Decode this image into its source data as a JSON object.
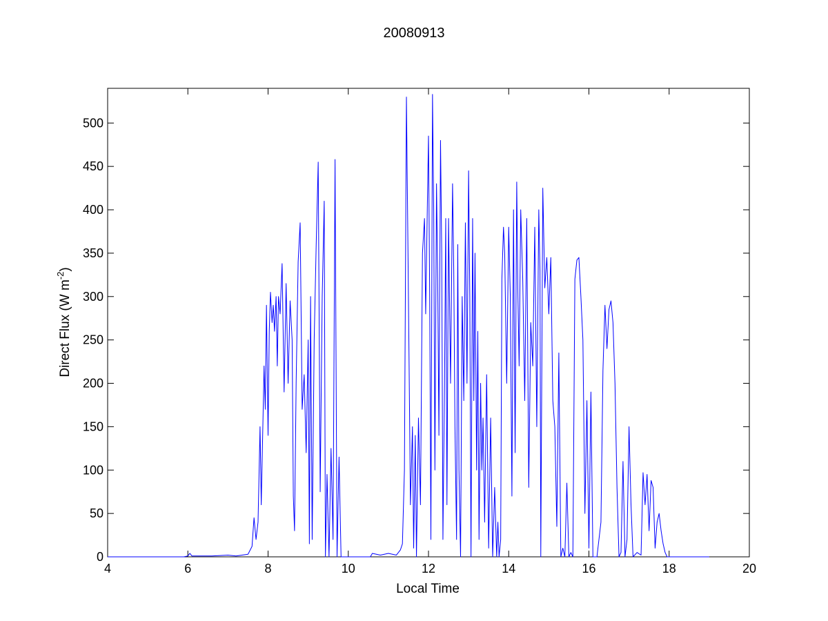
{
  "chart_data": {
    "type": "line",
    "title": "20080913",
    "xlabel": "Local Time",
    "ylabel": "Direct Flux (W m",
    "ylabel_sup": "-2",
    "ylabel_end": ")",
    "xlim": [
      4,
      20
    ],
    "ylim": [
      0,
      540
    ],
    "x_ticks": [
      4,
      6,
      8,
      10,
      12,
      14,
      16,
      18,
      20
    ],
    "y_ticks": [
      0,
      50,
      100,
      150,
      200,
      250,
      300,
      350,
      400,
      450,
      500
    ],
    "grid": false,
    "legend": "none",
    "series_color": "#0000ff",
    "series": [
      {
        "points": [
          [
            4.0,
            0
          ],
          [
            5.9,
            0
          ],
          [
            6.0,
            1
          ],
          [
            6.05,
            4
          ],
          [
            6.1,
            1
          ],
          [
            6.3,
            1
          ],
          [
            6.6,
            1
          ],
          [
            7.0,
            2
          ],
          [
            7.2,
            1
          ],
          [
            7.5,
            3
          ],
          [
            7.6,
            12
          ],
          [
            7.65,
            45
          ],
          [
            7.7,
            20
          ],
          [
            7.75,
            40
          ],
          [
            7.8,
            150
          ],
          [
            7.83,
            60
          ],
          [
            7.87,
            150
          ],
          [
            7.9,
            220
          ],
          [
            7.93,
            170
          ],
          [
            7.96,
            290
          ],
          [
            8.0,
            140
          ],
          [
            8.03,
            260
          ],
          [
            8.06,
            305
          ],
          [
            8.1,
            270
          ],
          [
            8.13,
            290
          ],
          [
            8.16,
            260
          ],
          [
            8.2,
            300
          ],
          [
            8.23,
            220
          ],
          [
            8.26,
            300
          ],
          [
            8.3,
            280
          ],
          [
            8.35,
            338
          ],
          [
            8.4,
            190
          ],
          [
            8.45,
            315
          ],
          [
            8.5,
            200
          ],
          [
            8.55,
            295
          ],
          [
            8.6,
            250
          ],
          [
            8.63,
            70
          ],
          [
            8.66,
            30
          ],
          [
            8.7,
            200
          ],
          [
            8.75,
            340
          ],
          [
            8.8,
            385
          ],
          [
            8.85,
            170
          ],
          [
            8.9,
            210
          ],
          [
            8.95,
            120
          ],
          [
            9.0,
            250
          ],
          [
            9.03,
            15
          ],
          [
            9.06,
            300
          ],
          [
            9.1,
            20
          ],
          [
            9.15,
            250
          ],
          [
            9.2,
            360
          ],
          [
            9.25,
            455
          ],
          [
            9.3,
            75
          ],
          [
            9.35,
            300
          ],
          [
            9.4,
            410
          ],
          [
            9.43,
            0
          ],
          [
            9.47,
            95
          ],
          [
            9.52,
            0
          ],
          [
            9.57,
            125
          ],
          [
            9.62,
            20
          ],
          [
            9.67,
            458
          ],
          [
            9.72,
            0
          ],
          [
            9.77,
            115
          ],
          [
            9.82,
            0
          ],
          [
            9.9,
            0
          ],
          [
            10.3,
            0
          ],
          [
            10.55,
            0
          ],
          [
            10.6,
            4
          ],
          [
            10.8,
            2
          ],
          [
            11.0,
            4
          ],
          [
            11.2,
            2
          ],
          [
            11.3,
            8
          ],
          [
            11.35,
            15
          ],
          [
            11.4,
            100
          ],
          [
            11.45,
            530
          ],
          [
            11.5,
            300
          ],
          [
            11.55,
            60
          ],
          [
            11.6,
            150
          ],
          [
            11.63,
            10
          ],
          [
            11.67,
            140
          ],
          [
            11.7,
            0
          ],
          [
            11.75,
            160
          ],
          [
            11.8,
            60
          ],
          [
            11.85,
            350
          ],
          [
            11.9,
            390
          ],
          [
            11.93,
            280
          ],
          [
            11.97,
            400
          ],
          [
            12.0,
            485
          ],
          [
            12.03,
            300
          ],
          [
            12.06,
            20
          ],
          [
            12.1,
            533
          ],
          [
            12.13,
            400
          ],
          [
            12.16,
            100
          ],
          [
            12.2,
            430
          ],
          [
            12.23,
            320
          ],
          [
            12.26,
            140
          ],
          [
            12.3,
            480
          ],
          [
            12.33,
            350
          ],
          [
            12.36,
            20
          ],
          [
            12.4,
            200
          ],
          [
            12.43,
            390
          ],
          [
            12.46,
            60
          ],
          [
            12.5,
            390
          ],
          [
            12.55,
            200
          ],
          [
            12.6,
            430
          ],
          [
            12.63,
            330
          ],
          [
            12.66,
            150
          ],
          [
            12.7,
            20
          ],
          [
            12.73,
            360
          ],
          [
            12.76,
            100
          ],
          [
            12.8,
            0
          ],
          [
            12.84,
            300
          ],
          [
            12.88,
            180
          ],
          [
            12.92,
            385
          ],
          [
            12.96,
            200
          ],
          [
            13.0,
            445
          ],
          [
            13.03,
            300
          ],
          [
            13.06,
            0
          ],
          [
            13.1,
            390
          ],
          [
            13.13,
            180
          ],
          [
            13.16,
            350
          ],
          [
            13.2,
            100
          ],
          [
            13.23,
            260
          ],
          [
            13.26,
            20
          ],
          [
            13.3,
            200
          ],
          [
            13.33,
            100
          ],
          [
            13.36,
            160
          ],
          [
            13.4,
            40
          ],
          [
            13.45,
            210
          ],
          [
            13.5,
            10
          ],
          [
            13.55,
            160
          ],
          [
            13.6,
            0
          ],
          [
            13.65,
            80
          ],
          [
            13.7,
            0
          ],
          [
            13.73,
            40
          ],
          [
            13.76,
            0
          ],
          [
            13.8,
            20
          ],
          [
            13.83,
            320
          ],
          [
            13.87,
            380
          ],
          [
            13.9,
            350
          ],
          [
            13.95,
            200
          ],
          [
            14.0,
            380
          ],
          [
            14.04,
            300
          ],
          [
            14.08,
            70
          ],
          [
            14.12,
            400
          ],
          [
            14.16,
            120
          ],
          [
            14.2,
            432
          ],
          [
            14.23,
            300
          ],
          [
            14.26,
            220
          ],
          [
            14.3,
            400
          ],
          [
            14.35,
            320
          ],
          [
            14.4,
            180
          ],
          [
            14.45,
            390
          ],
          [
            14.5,
            80
          ],
          [
            14.55,
            270
          ],
          [
            14.6,
            220
          ],
          [
            14.65,
            380
          ],
          [
            14.7,
            150
          ],
          [
            14.75,
            400
          ],
          [
            14.78,
            330
          ],
          [
            14.8,
            0
          ],
          [
            14.85,
            425
          ],
          [
            14.9,
            310
          ],
          [
            14.95,
            345
          ],
          [
            15.0,
            280
          ],
          [
            15.05,
            345
          ],
          [
            15.1,
            180
          ],
          [
            15.15,
            150
          ],
          [
            15.2,
            35
          ],
          [
            15.25,
            235
          ],
          [
            15.3,
            0
          ],
          [
            15.35,
            10
          ],
          [
            15.4,
            0
          ],
          [
            15.45,
            85
          ],
          [
            15.5,
            0
          ],
          [
            15.55,
            5
          ],
          [
            15.6,
            0
          ],
          [
            15.65,
            320
          ],
          [
            15.7,
            342
          ],
          [
            15.75,
            345
          ],
          [
            15.8,
            300
          ],
          [
            15.85,
            250
          ],
          [
            15.9,
            50
          ],
          [
            15.95,
            180
          ],
          [
            16.0,
            10
          ],
          [
            16.05,
            190
          ],
          [
            16.1,
            0
          ],
          [
            16.15,
            0
          ],
          [
            16.2,
            0
          ],
          [
            16.3,
            40
          ],
          [
            16.35,
            215
          ],
          [
            16.4,
            290
          ],
          [
            16.45,
            240
          ],
          [
            16.5,
            285
          ],
          [
            16.55,
            295
          ],
          [
            16.6,
            270
          ],
          [
            16.65,
            200
          ],
          [
            16.7,
            80
          ],
          [
            16.75,
            0
          ],
          [
            16.8,
            5
          ],
          [
            16.85,
            110
          ],
          [
            16.9,
            0
          ],
          [
            16.95,
            20
          ],
          [
            17.0,
            150
          ],
          [
            17.05,
            60
          ],
          [
            17.1,
            0
          ],
          [
            17.2,
            5
          ],
          [
            17.3,
            2
          ],
          [
            17.35,
            97
          ],
          [
            17.4,
            60
          ],
          [
            17.45,
            95
          ],
          [
            17.5,
            30
          ],
          [
            17.55,
            88
          ],
          [
            17.6,
            80
          ],
          [
            17.65,
            10
          ],
          [
            17.7,
            40
          ],
          [
            17.75,
            50
          ],
          [
            17.8,
            30
          ],
          [
            17.85,
            15
          ],
          [
            17.9,
            5
          ],
          [
            17.95,
            0
          ],
          [
            18.0,
            0
          ],
          [
            18.5,
            0
          ],
          [
            19.0,
            0
          ]
        ]
      }
    ]
  }
}
